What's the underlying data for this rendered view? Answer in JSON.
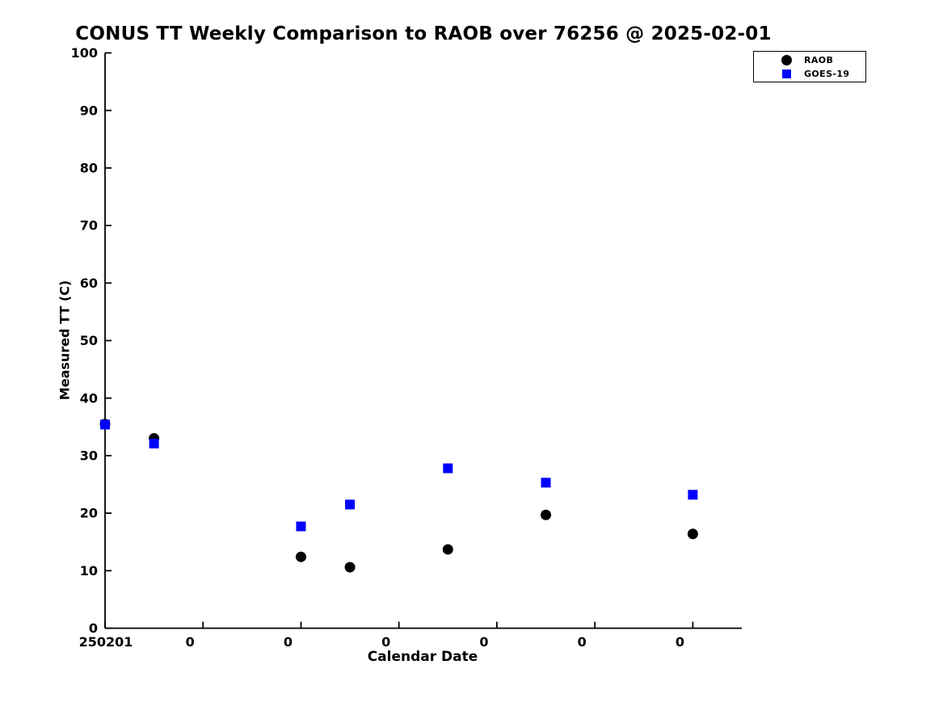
{
  "chart_data": {
    "type": "scatter",
    "title": "CONUS TT Weekly Comparison to RAOB over 76256 @ 2025-02-01",
    "xlabel": "Calendar Date",
    "ylabel": "Measured TT (C)",
    "ylim": [
      0,
      100
    ],
    "y_ticks": [
      0,
      10,
      20,
      30,
      40,
      50,
      60,
      70,
      80,
      90,
      100
    ],
    "x_axis": {
      "unit": "hours since 2025-02-01 00Z",
      "xlim": [
        0,
        156
      ],
      "ticks": [
        0,
        24,
        48,
        72,
        96,
        120,
        144
      ],
      "tick_labels": [
        "250201",
        "0",
        "0",
        "0",
        "0",
        "0",
        "0"
      ]
    },
    "grid": false,
    "legend_position": "top-right",
    "series": [
      {
        "name": "RAOB",
        "marker": "circle",
        "color": "#000000",
        "x": [
          0,
          12,
          48,
          60,
          84,
          108,
          144
        ],
        "y": [
          35.5,
          33.0,
          12.4,
          10.6,
          13.7,
          19.7,
          16.4
        ]
      },
      {
        "name": "GOES-19",
        "marker": "square",
        "color": "#0000ff",
        "x": [
          0,
          12,
          48,
          60,
          84,
          108,
          144
        ],
        "y": [
          35.4,
          32.1,
          17.7,
          21.5,
          27.8,
          25.3,
          23.2
        ]
      }
    ]
  }
}
